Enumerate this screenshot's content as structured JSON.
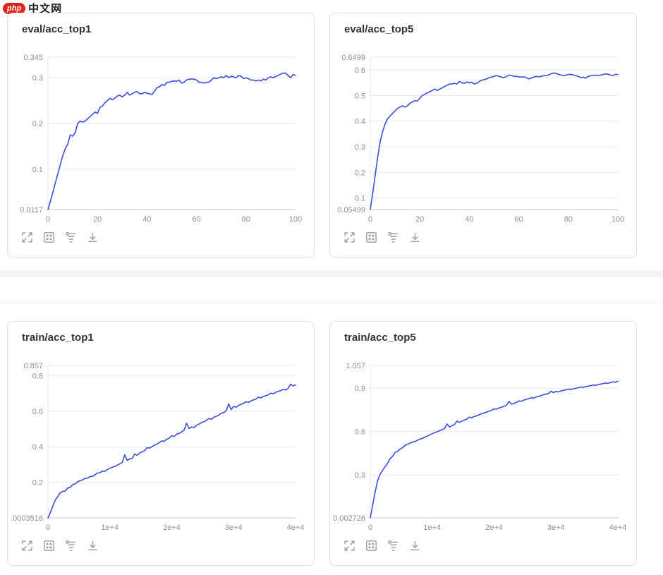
{
  "logo": {
    "badge": "php",
    "text": "中文网"
  },
  "colors": {
    "line": "#3b4ce1",
    "grid": "#e7e7e7",
    "axis_line": "#c6c6c6",
    "tick_label": "#8f8f8f",
    "title": "#333333",
    "icon": "#9a9a9a",
    "card_border": "#e2e2ec",
    "divider": "#f4f4f5",
    "logo_red": "#e2231a"
  },
  "toolbar": {
    "icons": [
      "fullscreen",
      "restore",
      "filter",
      "download"
    ]
  },
  "chart_data": [
    {
      "type": "line",
      "title": "eval/acc_top1",
      "xlabel": "",
      "ylabel": "",
      "grid": true,
      "legend": "none",
      "xlim": [
        0,
        100
      ],
      "ylim": [
        0.0117,
        0.345
      ],
      "x_ticks": [
        {
          "value": 0,
          "label": "0"
        },
        {
          "value": 20,
          "label": "20"
        },
        {
          "value": 40,
          "label": "40"
        },
        {
          "value": 60,
          "label": "60"
        },
        {
          "value": 80,
          "label": "80"
        },
        {
          "value": 100,
          "label": "100"
        }
      ],
      "y_ticks": [
        {
          "value": 0.345,
          "label": "0.345"
        },
        {
          "value": 0.3,
          "label": "0.3"
        },
        {
          "value": 0.2,
          "label": "0.2"
        },
        {
          "value": 0.1,
          "label": "0.1"
        },
        {
          "value": 0.0117,
          "label": "0.0117"
        }
      ],
      "series": [
        {
          "name": "eval/acc_top1",
          "x_start": 0,
          "x_step": 1,
          "y": [
            0.0117,
            0.03,
            0.05,
            0.07,
            0.09,
            0.11,
            0.13,
            0.145,
            0.155,
            0.175,
            0.172,
            0.18,
            0.2,
            0.205,
            0.203,
            0.205,
            0.21,
            0.215,
            0.22,
            0.225,
            0.222,
            0.235,
            0.238,
            0.245,
            0.25,
            0.255,
            0.252,
            0.255,
            0.26,
            0.262,
            0.258,
            0.262,
            0.268,
            0.262,
            0.265,
            0.268,
            0.27,
            0.265,
            0.265,
            0.268,
            0.266,
            0.265,
            0.263,
            0.27,
            0.278,
            0.28,
            0.285,
            0.283,
            0.29,
            0.29,
            0.292,
            0.293,
            0.292,
            0.295,
            0.288,
            0.29,
            0.295,
            0.297,
            0.297,
            0.297,
            0.295,
            0.29,
            0.29,
            0.288,
            0.29,
            0.29,
            0.295,
            0.3,
            0.298,
            0.3,
            0.302,
            0.3,
            0.305,
            0.3,
            0.303,
            0.302,
            0.3,
            0.305,
            0.303,
            0.298,
            0.3,
            0.298,
            0.295,
            0.295,
            0.293,
            0.295,
            0.293,
            0.297,
            0.295,
            0.3,
            0.302,
            0.3,
            0.303,
            0.305,
            0.308,
            0.31,
            0.31,
            0.305,
            0.3,
            0.307,
            0.305
          ]
        }
      ]
    },
    {
      "type": "line",
      "title": "eval/acc_top5",
      "xlabel": "",
      "ylabel": "",
      "grid": true,
      "legend": "none",
      "xlim": [
        0,
        100
      ],
      "ylim": [
        0.05499,
        0.6499
      ],
      "x_ticks": [
        {
          "value": 0,
          "label": "0"
        },
        {
          "value": 20,
          "label": "20"
        },
        {
          "value": 40,
          "label": "40"
        },
        {
          "value": 60,
          "label": "60"
        },
        {
          "value": 80,
          "label": "80"
        },
        {
          "value": 100,
          "label": "100"
        }
      ],
      "y_ticks": [
        {
          "value": 0.6499,
          "label": "0.6499"
        },
        {
          "value": 0.6,
          "label": "0.6"
        },
        {
          "value": 0.5,
          "label": "0.5"
        },
        {
          "value": 0.4,
          "label": "0.4"
        },
        {
          "value": 0.3,
          "label": "0.3"
        },
        {
          "value": 0.2,
          "label": "0.2"
        },
        {
          "value": 0.1,
          "label": "0.1"
        },
        {
          "value": 0.05499,
          "label": "0.05499"
        }
      ],
      "series": [
        {
          "name": "eval/acc_top5",
          "x_start": 0,
          "x_step": 1,
          "y": [
            0.055,
            0.12,
            0.19,
            0.26,
            0.32,
            0.36,
            0.39,
            0.41,
            0.42,
            0.43,
            0.44,
            0.45,
            0.455,
            0.46,
            0.455,
            0.46,
            0.47,
            0.475,
            0.48,
            0.478,
            0.49,
            0.5,
            0.505,
            0.51,
            0.515,
            0.52,
            0.525,
            0.52,
            0.525,
            0.53,
            0.535,
            0.54,
            0.545,
            0.545,
            0.548,
            0.545,
            0.555,
            0.55,
            0.548,
            0.553,
            0.55,
            0.552,
            0.545,
            0.548,
            0.555,
            0.56,
            0.562,
            0.565,
            0.57,
            0.572,
            0.575,
            0.578,
            0.575,
            0.572,
            0.57,
            0.575,
            0.58,
            0.578,
            0.575,
            0.575,
            0.573,
            0.572,
            0.573,
            0.57,
            0.565,
            0.568,
            0.572,
            0.575,
            0.573,
            0.575,
            0.577,
            0.578,
            0.58,
            0.585,
            0.588,
            0.586,
            0.583,
            0.58,
            0.578,
            0.58,
            0.582,
            0.583,
            0.58,
            0.578,
            0.575,
            0.57,
            0.572,
            0.568,
            0.575,
            0.577,
            0.578,
            0.58,
            0.578,
            0.58,
            0.582,
            0.585,
            0.583,
            0.58,
            0.578,
            0.583,
            0.582
          ]
        }
      ]
    },
    {
      "type": "line",
      "title": "train/acc_top1",
      "xlabel": "",
      "ylabel": "",
      "grid": true,
      "legend": "none",
      "xlim": [
        0,
        40000
      ],
      "ylim": [
        0.0003516,
        0.857
      ],
      "x_ticks": [
        {
          "value": 0,
          "label": "0"
        },
        {
          "value": 10000,
          "label": "1e+4"
        },
        {
          "value": 20000,
          "label": "2e+4"
        },
        {
          "value": 30000,
          "label": "3e+4"
        },
        {
          "value": 40000,
          "label": "4e+4"
        }
      ],
      "y_ticks": [
        {
          "value": 0.857,
          "label": "0.857"
        },
        {
          "value": 0.8,
          "label": "0.8"
        },
        {
          "value": 0.6,
          "label": "0.6"
        },
        {
          "value": 0.4,
          "label": "0.4"
        },
        {
          "value": 0.2,
          "label": "0.2"
        },
        {
          "value": 0.0003516,
          "label": ".0003516"
        }
      ],
      "series": [
        {
          "name": "train/acc_top1",
          "x_start": 0,
          "x_step": 400,
          "y": [
            0.0004,
            0.031,
            0.068,
            0.102,
            0.121,
            0.142,
            0.149,
            0.152,
            0.168,
            0.172,
            0.187,
            0.191,
            0.203,
            0.209,
            0.214,
            0.222,
            0.224,
            0.232,
            0.234,
            0.243,
            0.252,
            0.254,
            0.263,
            0.262,
            0.272,
            0.279,
            0.285,
            0.289,
            0.297,
            0.304,
            0.311,
            0.355,
            0.323,
            0.332,
            0.334,
            0.359,
            0.352,
            0.365,
            0.371,
            0.378,
            0.395,
            0.392,
            0.401,
            0.408,
            0.415,
            0.424,
            0.433,
            0.431,
            0.443,
            0.448,
            0.462,
            0.458,
            0.471,
            0.475,
            0.484,
            0.494,
            0.532,
            0.502,
            0.511,
            0.508,
            0.521,
            0.527,
            0.536,
            0.541,
            0.548,
            0.559,
            0.554,
            0.566,
            0.571,
            0.578,
            0.589,
            0.592,
            0.601,
            0.641,
            0.609,
            0.627,
            0.622,
            0.633,
            0.639,
            0.644,
            0.653,
            0.649,
            0.658,
            0.663,
            0.668,
            0.679,
            0.674,
            0.683,
            0.687,
            0.692,
            0.701,
            0.698,
            0.706,
            0.711,
            0.716,
            0.722,
            0.719,
            0.728,
            0.752,
            0.742,
            0.748
          ]
        }
      ]
    },
    {
      "type": "line",
      "title": "train/acc_top5",
      "xlabel": "",
      "ylabel": "",
      "grid": true,
      "legend": "none",
      "xlim": [
        0,
        40000
      ],
      "ylim": [
        0.002726,
        1.057
      ],
      "x_ticks": [
        {
          "value": 0,
          "label": "0"
        },
        {
          "value": 10000,
          "label": "1e+4"
        },
        {
          "value": 20000,
          "label": "2e+4"
        },
        {
          "value": 30000,
          "label": "3e+4"
        },
        {
          "value": 40000,
          "label": "4e+4"
        }
      ],
      "y_ticks": [
        {
          "value": 1.057,
          "label": "1.057"
        },
        {
          "value": 0.9,
          "label": "0.9"
        },
        {
          "value": 0.6,
          "label": "0.6"
        },
        {
          "value": 0.3,
          "label": "0.3"
        },
        {
          "value": 0.002726,
          "label": "0.002726"
        }
      ],
      "series": [
        {
          "name": "train/acc_top5",
          "x_start": 0,
          "x_step": 400,
          "y": [
            0.0027,
            0.095,
            0.185,
            0.262,
            0.305,
            0.331,
            0.359,
            0.381,
            0.412,
            0.428,
            0.455,
            0.462,
            0.479,
            0.488,
            0.503,
            0.512,
            0.519,
            0.527,
            0.531,
            0.539,
            0.548,
            0.552,
            0.561,
            0.568,
            0.577,
            0.585,
            0.592,
            0.598,
            0.606,
            0.613,
            0.621,
            0.652,
            0.631,
            0.641,
            0.648,
            0.672,
            0.663,
            0.673,
            0.679,
            0.686,
            0.699,
            0.696,
            0.704,
            0.709,
            0.716,
            0.723,
            0.729,
            0.734,
            0.741,
            0.747,
            0.757,
            0.754,
            0.763,
            0.768,
            0.774,
            0.782,
            0.808,
            0.789,
            0.795,
            0.801,
            0.812,
            0.809,
            0.817,
            0.822,
            0.827,
            0.834,
            0.831,
            0.839,
            0.843,
            0.848,
            0.855,
            0.858,
            0.863,
            0.879,
            0.869,
            0.877,
            0.874,
            0.881,
            0.885,
            0.888,
            0.893,
            0.89,
            0.896,
            0.899,
            0.903,
            0.908,
            0.905,
            0.911,
            0.914,
            0.917,
            0.922,
            0.919,
            0.925,
            0.928,
            0.931,
            0.935,
            0.933,
            0.938,
            0.944,
            0.941,
            0.948
          ]
        }
      ]
    }
  ]
}
